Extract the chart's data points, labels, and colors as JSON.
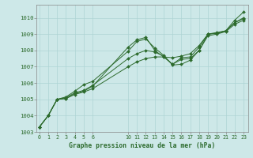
{
  "xlabel": "Graphe pression niveau de la mer (hPa)",
  "background_color": "#cde8e8",
  "grid_color": "#aed4d4",
  "line_color": "#2d6b2d",
  "ylim": [
    1003.0,
    1010.8
  ],
  "yticks": [
    1003,
    1004,
    1005,
    1006,
    1007,
    1008,
    1009,
    1010
  ],
  "xtick_positions": [
    0,
    1,
    2,
    3,
    4,
    5,
    6,
    10,
    11,
    12,
    13,
    14,
    15,
    16,
    17,
    18,
    19,
    20,
    21,
    22,
    23
  ],
  "xtick_labels": [
    "0",
    "1",
    "2",
    "3",
    "4",
    "5",
    "6",
    "10",
    "11",
    "12",
    "13",
    "14",
    "15",
    "16",
    "17",
    "18",
    "19",
    "20",
    "21",
    "22",
    "23"
  ],
  "xlim": [
    -0.3,
    23.5
  ],
  "series": [
    {
      "x": [
        0,
        1,
        2,
        3,
        4,
        5,
        6,
        10,
        11,
        12,
        13,
        14,
        15,
        16,
        17,
        18,
        19,
        20,
        21,
        22,
        23
      ],
      "y": [
        1003.3,
        1004.0,
        1005.0,
        1005.05,
        1005.35,
        1005.5,
        1005.8,
        1008.2,
        1008.65,
        1008.8,
        1008.0,
        1007.6,
        1007.55,
        1007.65,
        1007.8,
        1008.3,
        1009.0,
        1009.1,
        1009.2,
        1009.85,
        1010.35
      ]
    },
    {
      "x": [
        0,
        1,
        2,
        3,
        4,
        5,
        6,
        10,
        11,
        12,
        13,
        14,
        15,
        16,
        17,
        18,
        19,
        20,
        21,
        22,
        23
      ],
      "y": [
        1003.3,
        1004.0,
        1005.0,
        1005.05,
        1005.3,
        1005.45,
        1005.65,
        1007.0,
        1007.3,
        1007.5,
        1007.6,
        1007.6,
        1007.15,
        1007.45,
        1007.5,
        1008.0,
        1008.9,
        1009.0,
        1009.15,
        1009.6,
        1009.85
      ]
    },
    {
      "x": [
        0,
        1,
        2,
        3,
        4,
        5,
        6,
        10,
        11,
        12,
        13,
        14,
        15,
        16,
        17,
        18,
        19,
        20,
        21,
        22,
        23
      ],
      "y": [
        1003.3,
        1004.0,
        1005.0,
        1005.1,
        1005.4,
        1005.55,
        1005.85,
        1007.5,
        1007.8,
        1008.0,
        1007.9,
        1007.65,
        1007.15,
        1007.55,
        1007.6,
        1008.2,
        1009.0,
        1009.05,
        1009.2,
        1009.7,
        1009.95
      ]
    },
    {
      "x": [
        0,
        1,
        2,
        3,
        4,
        5,
        6,
        10,
        11,
        12,
        13,
        14,
        15,
        16,
        17,
        18,
        19,
        20,
        21,
        22,
        23
      ],
      "y": [
        1003.3,
        1004.0,
        1005.0,
        1005.15,
        1005.5,
        1005.9,
        1006.1,
        1007.95,
        1008.55,
        1008.7,
        1008.15,
        1007.7,
        1007.1,
        1007.15,
        1007.4,
        1008.0,
        1009.0,
        1009.05,
        1009.2,
        1009.7,
        1010.0
      ]
    }
  ]
}
